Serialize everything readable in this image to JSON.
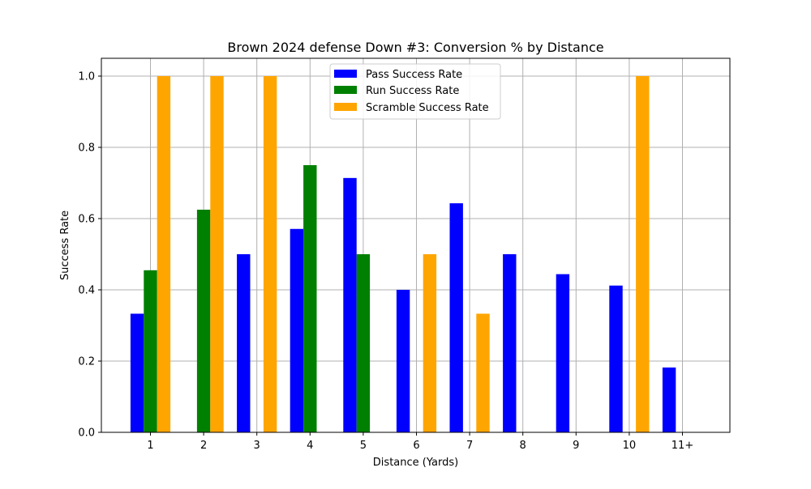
{
  "chart_data": {
    "type": "bar",
    "title": "Brown 2024 defense Down #3: Conversion % by Distance",
    "xlabel": "Distance (Yards)",
    "ylabel": "Success Rate",
    "categories": [
      "1",
      "2",
      "3",
      "4",
      "5",
      "6",
      "7",
      "8",
      "9",
      "10",
      "11+"
    ],
    "ylim": [
      0,
      1.05
    ],
    "yticks": [
      "0.0",
      "0.2",
      "0.4",
      "0.6",
      "0.8",
      "1.0"
    ],
    "grid": true,
    "legend_position": "top-center",
    "series": [
      {
        "name": "Pass Success Rate",
        "color": "#0000ff",
        "values": [
          0.333,
          0,
          0.5,
          0.571,
          0.714,
          0.4,
          0.643,
          0.5,
          0.444,
          0.412,
          0.182
        ]
      },
      {
        "name": "Run Success Rate",
        "color": "#008000",
        "values": [
          0.455,
          0.625,
          0,
          0.75,
          0.5,
          0,
          0,
          0,
          0,
          0,
          0
        ]
      },
      {
        "name": "Scramble Success Rate",
        "color": "#ffa500",
        "values": [
          1.0,
          1.0,
          1.0,
          0,
          0,
          0.5,
          0.333,
          0,
          0,
          1.0,
          0
        ]
      }
    ]
  }
}
